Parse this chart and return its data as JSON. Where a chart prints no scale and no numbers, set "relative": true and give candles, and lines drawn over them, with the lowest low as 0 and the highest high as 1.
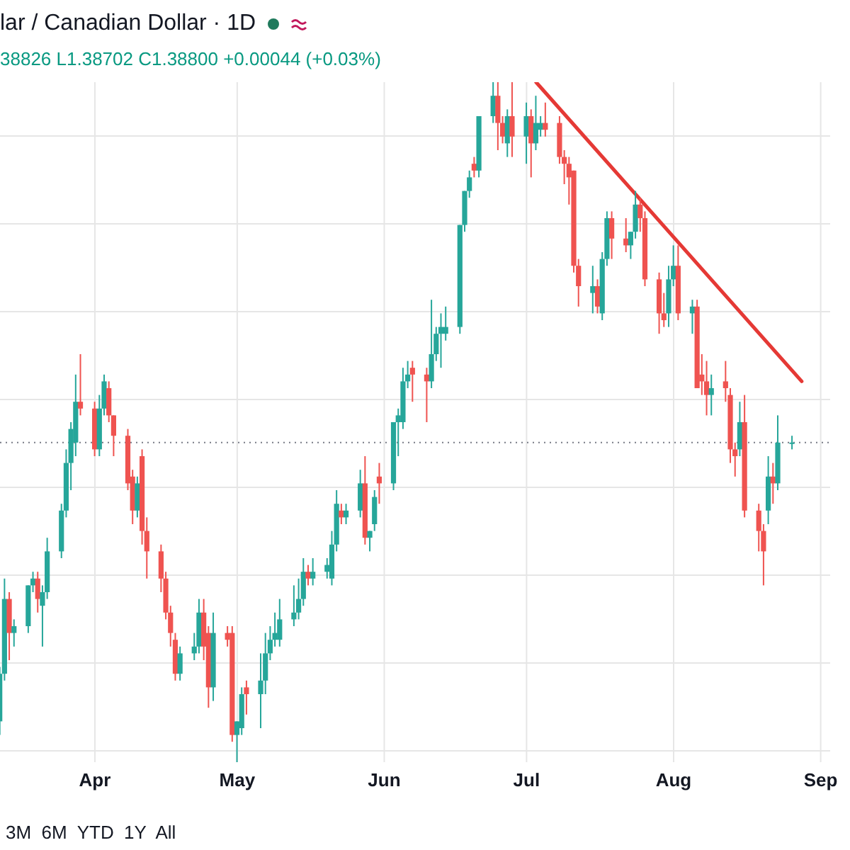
{
  "chart_data": {
    "type": "candlestick",
    "title": "lar / Canadian Dollar · 1D",
    "annotations": [
      "38826 L1.38702 C1.38800 +0.00044 (+0.03%)",
      "3M  6M  YTD  1Y  All"
    ],
    "relative": true,
    "tick_labels": "x",
    "grid": true,
    "legend": false,
    "xlim": [
      "--03-12",
      "--09-03"
    ],
    "xticks": [
      {
        "value": "--04-01",
        "label": "Apr"
      },
      {
        "value": "--05-01",
        "label": "May"
      },
      {
        "value": "--06-01",
        "label": "Jun"
      },
      {
        "value": "--07-01",
        "label": "Jul"
      },
      {
        "value": "--08-01",
        "label": "Aug"
      },
      {
        "value": "--09-01",
        "label": "Sep"
      }
    ],
    "x": [
      "--03-12",
      "--03-13",
      "--03-14",
      "--03-15",
      "--03-18",
      "--03-19",
      "--03-20",
      "--03-21",
      "--03-22",
      "--03-25",
      "--03-26",
      "--03-27",
      "--03-28",
      "--03-29",
      "--04-01",
      "--04-02",
      "--04-03",
      "--04-04",
      "--04-05",
      "--04-08",
      "--04-09",
      "--04-10",
      "--04-11",
      "--04-12",
      "--04-15",
      "--04-16",
      "--04-17",
      "--04-18",
      "--04-19",
      "--04-22",
      "--04-23",
      "--04-24",
      "--04-25",
      "--04-26",
      "--04-29",
      "--04-30",
      "--05-01",
      "--05-02",
      "--05-03",
      "--05-06",
      "--05-07",
      "--05-08",
      "--05-09",
      "--05-10",
      "--05-13",
      "--05-14",
      "--05-15",
      "--05-16",
      "--05-17",
      "--05-20",
      "--05-21",
      "--05-22",
      "--05-23",
      "--05-24",
      "--05-27",
      "--05-28",
      "--05-29",
      "--05-30",
      "--05-31",
      "--06-03",
      "--06-04",
      "--06-05",
      "--06-06",
      "--06-07",
      "--06-10",
      "--06-11",
      "--06-12",
      "--06-13",
      "--06-14",
      "--06-17",
      "--06-18",
      "--06-19",
      "--06-20",
      "--06-21",
      "--06-24",
      "--06-25",
      "--06-26",
      "--06-27",
      "--06-28",
      "--07-01",
      "--07-02",
      "--07-03",
      "--07-04",
      "--07-05",
      "--07-08",
      "--07-09",
      "--07-10",
      "--07-11",
      "--07-12",
      "--07-15",
      "--07-16",
      "--07-17",
      "--07-18",
      "--07-19",
      "--07-22",
      "--07-23",
      "--07-24",
      "--07-25",
      "--07-26",
      "--07-29",
      "--07-30",
      "--07-31",
      "--08-01",
      "--08-02",
      "--08-05",
      "--08-06",
      "--08-07",
      "--08-08",
      "--08-09",
      "--08-12",
      "--08-13",
      "--08-14",
      "--08-15",
      "--08-16",
      "--08-19",
      "--08-20",
      "--08-21",
      "--08-22",
      "--08-23",
      "--08-26"
    ],
    "ohlc": [
      [
        0.06,
        0.14,
        0.04,
        0.13
      ],
      [
        0.13,
        0.27,
        0.12,
        0.24
      ],
      [
        0.24,
        0.25,
        0.15,
        0.19
      ],
      [
        0.19,
        0.21,
        0.17,
        0.2
      ],
      [
        0.2,
        0.26,
        0.19,
        0.26
      ],
      [
        0.26,
        0.28,
        0.25,
        0.27
      ],
      [
        0.27,
        0.28,
        0.22,
        0.24
      ],
      [
        0.23,
        0.26,
        0.17,
        0.25
      ],
      [
        0.25,
        0.33,
        0.24,
        0.31
      ],
      [
        0.31,
        0.38,
        0.3,
        0.37
      ],
      [
        0.37,
        0.46,
        0.36,
        0.44
      ],
      [
        0.44,
        0.5,
        0.4,
        0.49
      ],
      [
        0.47,
        0.57,
        0.45,
        0.53
      ],
      [
        0.53,
        0.6,
        0.51,
        0.52
      ],
      [
        0.52,
        0.53,
        0.45,
        0.46
      ],
      [
        0.46,
        0.54,
        0.45,
        0.52
      ],
      [
        0.52,
        0.57,
        0.51,
        0.56
      ],
      [
        0.55,
        0.56,
        0.5,
        0.51
      ],
      [
        0.51,
        0.51,
        0.45,
        0.48
      ],
      [
        0.48,
        0.49,
        0.4,
        0.41
      ],
      [
        0.42,
        0.43,
        0.35,
        0.37
      ],
      [
        0.37,
        0.42,
        0.36,
        0.41
      ],
      [
        0.45,
        0.46,
        0.32,
        0.34
      ],
      [
        0.34,
        0.36,
        0.27,
        0.31
      ],
      [
        0.31,
        0.32,
        0.25,
        0.27
      ],
      [
        0.27,
        0.28,
        0.21,
        0.22
      ],
      [
        0.22,
        0.23,
        0.17,
        0.19
      ],
      [
        0.18,
        0.19,
        0.12,
        0.13
      ],
      [
        0.13,
        0.17,
        0.12,
        0.16
      ],
      [
        0.16,
        0.19,
        0.15,
        0.17
      ],
      [
        0.17,
        0.24,
        0.16,
        0.22
      ],
      [
        0.22,
        0.24,
        0.15,
        0.17
      ],
      [
        0.19,
        0.2,
        0.08,
        0.11
      ],
      [
        0.11,
        0.22,
        0.09,
        0.19
      ],
      [
        0.19,
        0.2,
        0.17,
        0.18
      ],
      [
        0.19,
        0.2,
        0.03,
        0.04
      ],
      [
        0.04,
        0.06,
        0.0,
        0.06
      ],
      [
        0.05,
        0.11,
        0.04,
        0.1
      ],
      [
        0.11,
        0.12,
        0.07,
        0.1
      ],
      [
        0.1,
        0.16,
        0.05,
        0.12
      ],
      [
        0.12,
        0.19,
        0.1,
        0.16
      ],
      [
        0.16,
        0.2,
        0.15,
        0.18
      ],
      [
        0.18,
        0.22,
        0.17,
        0.19
      ],
      [
        0.18,
        0.24,
        0.17,
        0.21
      ],
      [
        0.21,
        0.26,
        0.2,
        0.22
      ],
      [
        0.22,
        0.27,
        0.21,
        0.24
      ],
      [
        0.24,
        0.3,
        0.23,
        0.28
      ],
      [
        0.28,
        0.29,
        0.26,
        0.27
      ],
      [
        0.27,
        0.3,
        0.26,
        0.28
      ],
      [
        0.28,
        0.3,
        0.27,
        0.29
      ],
      [
        0.27,
        0.34,
        0.26,
        0.32
      ],
      [
        0.32,
        0.4,
        0.31,
        0.38
      ],
      [
        0.37,
        0.38,
        0.35,
        0.36
      ],
      [
        0.36,
        0.38,
        0.35,
        0.37
      ],
      [
        0.37,
        0.43,
        0.36,
        0.41
      ],
      [
        0.41,
        0.45,
        0.32,
        0.33
      ],
      [
        0.33,
        0.34,
        0.31,
        0.34
      ],
      [
        0.35,
        0.4,
        0.34,
        0.39
      ],
      [
        0.42,
        0.44,
        0.38,
        0.41
      ],
      [
        0.41,
        0.5,
        0.4,
        0.5
      ],
      [
        0.5,
        0.52,
        0.45,
        0.51
      ],
      [
        0.5,
        0.58,
        0.49,
        0.56
      ],
      [
        0.56,
        0.59,
        0.55,
        0.57
      ],
      [
        0.58,
        0.59,
        0.53,
        0.57
      ],
      [
        0.57,
        0.58,
        0.5,
        0.56
      ],
      [
        0.56,
        0.68,
        0.55,
        0.6
      ],
      [
        0.6,
        0.64,
        0.59,
        0.63
      ],
      [
        0.63,
        0.66,
        0.58,
        0.64
      ],
      [
        0.63,
        0.67,
        0.62,
        0.64
      ],
      [
        0.64,
        0.79,
        0.63,
        0.79
      ],
      [
        0.79,
        0.84,
        0.78,
        0.84
      ],
      [
        0.84,
        0.87,
        0.83,
        0.86
      ],
      [
        0.88,
        0.89,
        0.86,
        0.87
      ],
      [
        0.87,
        0.95,
        0.86,
        0.95
      ],
      [
        0.95,
        1.0,
        0.94,
        0.98
      ],
      [
        0.98,
        1.0,
        0.9,
        0.94
      ],
      [
        0.94,
        0.95,
        0.91,
        0.92
      ],
      [
        0.91,
        0.96,
        0.89,
        0.95
      ],
      [
        0.95,
        1.0,
        0.89,
        0.92
      ],
      [
        0.92,
        0.97,
        0.88,
        0.95
      ],
      [
        0.95,
        0.96,
        0.86,
        0.91
      ],
      [
        0.91,
        0.98,
        0.9,
        0.94
      ],
      [
        0.93,
        0.95,
        0.92,
        0.94
      ],
      [
        0.94,
        0.97,
        0.92,
        0.93
      ],
      [
        0.94,
        0.95,
        0.88,
        0.89
      ],
      [
        0.89,
        0.9,
        0.85,
        0.88
      ],
      [
        0.88,
        0.89,
        0.82,
        0.86
      ],
      [
        0.87,
        0.87,
        0.72,
        0.73
      ],
      [
        0.73,
        0.74,
        0.67,
        0.7
      ],
      [
        0.69,
        0.73,
        0.66,
        0.7
      ],
      [
        0.7,
        0.71,
        0.66,
        0.67
      ],
      [
        0.66,
        0.75,
        0.65,
        0.74
      ],
      [
        0.74,
        0.81,
        0.73,
        0.8
      ],
      [
        0.8,
        0.81,
        0.74,
        0.77
      ],
      [
        0.77,
        0.8,
        0.75,
        0.76
      ],
      [
        0.76,
        0.78,
        0.74,
        0.78
      ],
      [
        0.78,
        0.84,
        0.77,
        0.82
      ],
      [
        0.82,
        0.83,
        0.78,
        0.8
      ],
      [
        0.8,
        0.81,
        0.7,
        0.71
      ],
      [
        0.71,
        0.72,
        0.63,
        0.66
      ],
      [
        0.66,
        0.69,
        0.64,
        0.65
      ],
      [
        0.66,
        0.73,
        0.64,
        0.71
      ],
      [
        0.71,
        0.76,
        0.7,
        0.73
      ],
      [
        0.73,
        0.76,
        0.65,
        0.66
      ],
      [
        0.66,
        0.68,
        0.63,
        0.67
      ],
      [
        0.67,
        0.68,
        0.55,
        0.55
      ],
      [
        0.57,
        0.6,
        0.54,
        0.56
      ],
      [
        0.56,
        0.59,
        0.51,
        0.54
      ],
      [
        0.54,
        0.57,
        0.51,
        0.55
      ],
      [
        0.56,
        0.59,
        0.53,
        0.55
      ],
      [
        0.54,
        0.55,
        0.44,
        0.46
      ],
      [
        0.46,
        0.47,
        0.42,
        0.45
      ],
      [
        0.46,
        0.53,
        0.45,
        0.5
      ],
      [
        0.5,
        0.54,
        0.36,
        0.37
      ],
      [
        0.37,
        0.38,
        0.31,
        0.34
      ],
      [
        0.34,
        0.35,
        0.26,
        0.31
      ],
      [
        0.37,
        0.45,
        0.35,
        0.42
      ],
      [
        0.42,
        0.44,
        0.38,
        0.41
      ],
      [
        0.41,
        0.51,
        0.4,
        0.47
      ],
      [
        0.47,
        0.48,
        0.46,
        0.47
      ]
    ],
    "colors": [
      "#26a69a",
      "#26a69a",
      "#ef5350",
      "#26a69a",
      "#26a69a",
      "#26a69a",
      "#ef5350",
      "#26a69a",
      "#26a69a",
      "#26a69a",
      "#26a69a",
      "#26a69a",
      "#26a69a",
      "#ef5350",
      "#ef5350",
      "#26a69a",
      "#26a69a",
      "#ef5350",
      "#ef5350",
      "#ef5350",
      "#ef5350",
      "#26a69a",
      "#ef5350",
      "#ef5350",
      "#ef5350",
      "#ef5350",
      "#ef5350",
      "#ef5350",
      "#26a69a",
      "#26a69a",
      "#26a69a",
      "#ef5350",
      "#ef5350",
      "#26a69a",
      "#ef5350",
      "#ef5350",
      "#26a69a",
      "#26a69a",
      "#ef5350",
      "#26a69a",
      "#26a69a",
      "#26a69a",
      "#26a69a",
      "#26a69a",
      "#26a69a",
      "#26a69a",
      "#26a69a",
      "#ef5350",
      "#26a69a",
      "#26a69a",
      "#26a69a",
      "#26a69a",
      "#ef5350",
      "#26a69a",
      "#26a69a",
      "#ef5350",
      "#26a69a",
      "#26a69a",
      "#ef5350",
      "#26a69a",
      "#26a69a",
      "#26a69a",
      "#26a69a",
      "#ef5350",
      "#ef5350",
      "#26a69a",
      "#26a69a",
      "#26a69a",
      "#26a69a",
      "#26a69a",
      "#26a69a",
      "#26a69a",
      "#ef5350",
      "#26a69a",
      "#26a69a",
      "#ef5350",
      "#ef5350",
      "#26a69a",
      "#ef5350",
      "#26a69a",
      "#ef5350",
      "#26a69a",
      "#26a69a",
      "#ef5350",
      "#ef5350",
      "#ef5350",
      "#ef5350",
      "#ef5350",
      "#ef5350",
      "#26a69a",
      "#ef5350",
      "#26a69a",
      "#26a69a",
      "#ef5350",
      "#ef5350",
      "#26a69a",
      "#26a69a",
      "#ef5350",
      "#ef5350",
      "#ef5350",
      "#ef5350",
      "#26a69a",
      "#26a69a",
      "#ef5350",
      "#26a69a",
      "#ef5350",
      "#ef5350",
      "#ef5350",
      "#26a69a",
      "#ef5350",
      "#ef5350",
      "#ef5350",
      "#26a69a",
      "#ef5350",
      "#ef5350",
      "#ef5350",
      "#26a69a",
      "#ef5350",
      "#26a69a",
      "#26a69a"
    ],
    "series": [
      {
        "type": "line",
        "x": [
          "--07-03",
          "--08-28"
        ],
        "values": [
          1.0,
          0.56
        ],
        "color": "#e53935"
      }
    ],
    "ref_lines": [
      {
        "axis": "y",
        "value": 0.47,
        "color": "#787b86",
        "line_style": "dotted"
      }
    ]
  }
}
